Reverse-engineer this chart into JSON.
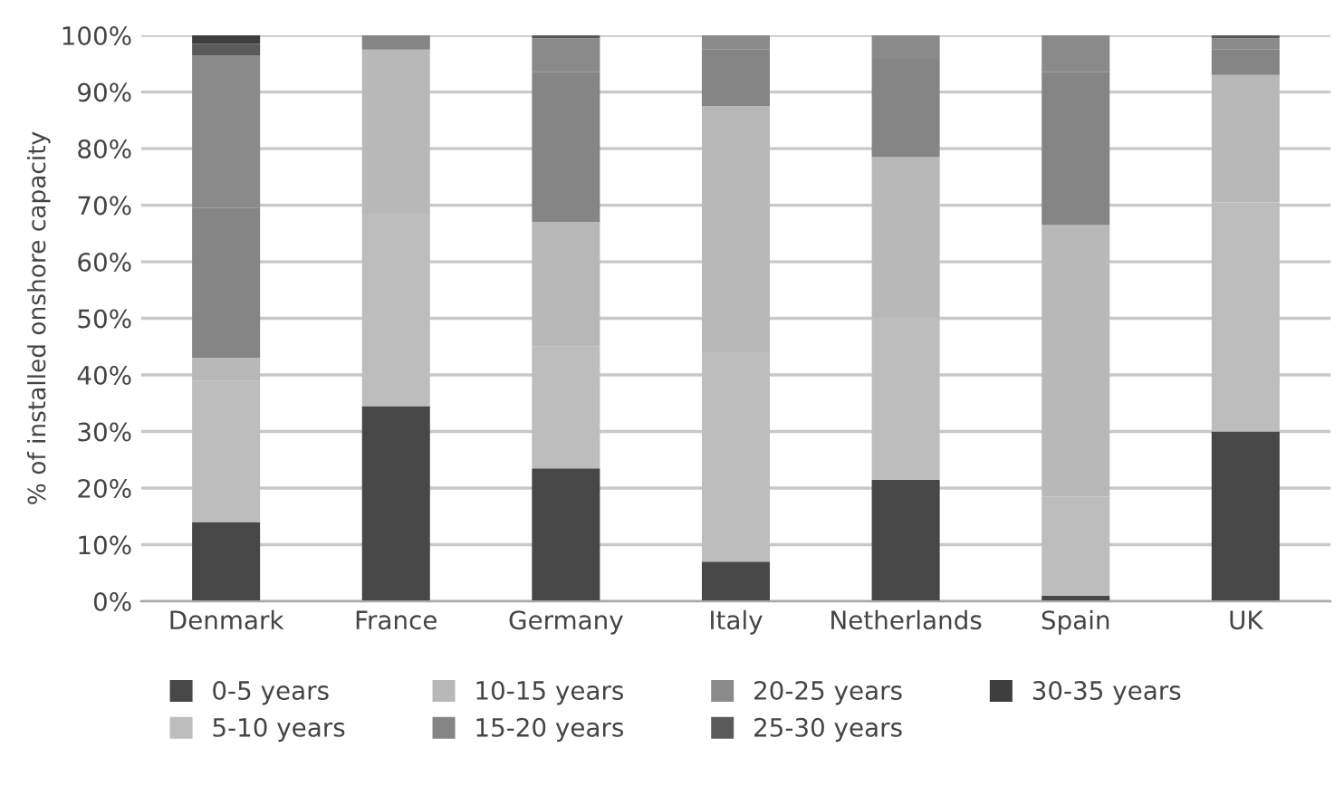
{
  "chart_data": {
    "type": "bar",
    "stacked": true,
    "ylabel": "% of installed onshore capacity",
    "categories": [
      "Denmark",
      "France",
      "Germany",
      "Italy",
      "Netherlands",
      "Spain",
      "UK"
    ],
    "series": [
      {
        "name": "0-5 years",
        "color": "#474747",
        "values": [
          14,
          34.5,
          23.5,
          7,
          21.5,
          1,
          30
        ]
      },
      {
        "name": "5-10 years",
        "color": "#bdbdbd",
        "values": [
          25,
          34,
          21.5,
          37,
          28.5,
          17.5,
          40.5
        ]
      },
      {
        "name": "10-15 years",
        "color": "#b8b8b8",
        "values": [
          4,
          29,
          22,
          43.5,
          28.5,
          48,
          22.5
        ]
      },
      {
        "name": "15-20 years",
        "color": "#858585",
        "values": [
          26.5,
          2.5,
          26.5,
          10,
          17.5,
          27,
          4.5
        ]
      },
      {
        "name": "20-25 years",
        "color": "#8a8a8a",
        "values": [
          27,
          0,
          6,
          2.5,
          4,
          6.5,
          2
        ]
      },
      {
        "name": "25-30 years",
        "color": "#5a5a5a",
        "values": [
          2,
          0,
          0.5,
          0,
          0,
          0,
          0.5
        ]
      },
      {
        "name": "30-35 years",
        "color": "#3e3e3e",
        "values": [
          1.5,
          0,
          0,
          0,
          0,
          0,
          0
        ]
      }
    ],
    "ylim": [
      0,
      100
    ],
    "yticks": [
      {
        "value": 0,
        "label": "0%"
      },
      {
        "value": 10,
        "label": "10%"
      },
      {
        "value": 20,
        "label": "20%"
      },
      {
        "value": 30,
        "label": "30%"
      },
      {
        "value": 40,
        "label": "40%"
      },
      {
        "value": 50,
        "label": "50%"
      },
      {
        "value": 60,
        "label": "60%"
      },
      {
        "value": 70,
        "label": "70%"
      },
      {
        "value": 80,
        "label": "80%"
      },
      {
        "value": 90,
        "label": "90%"
      },
      {
        "value": 100,
        "label": "100%"
      }
    ],
    "grid": "y",
    "legend": "bottom"
  }
}
